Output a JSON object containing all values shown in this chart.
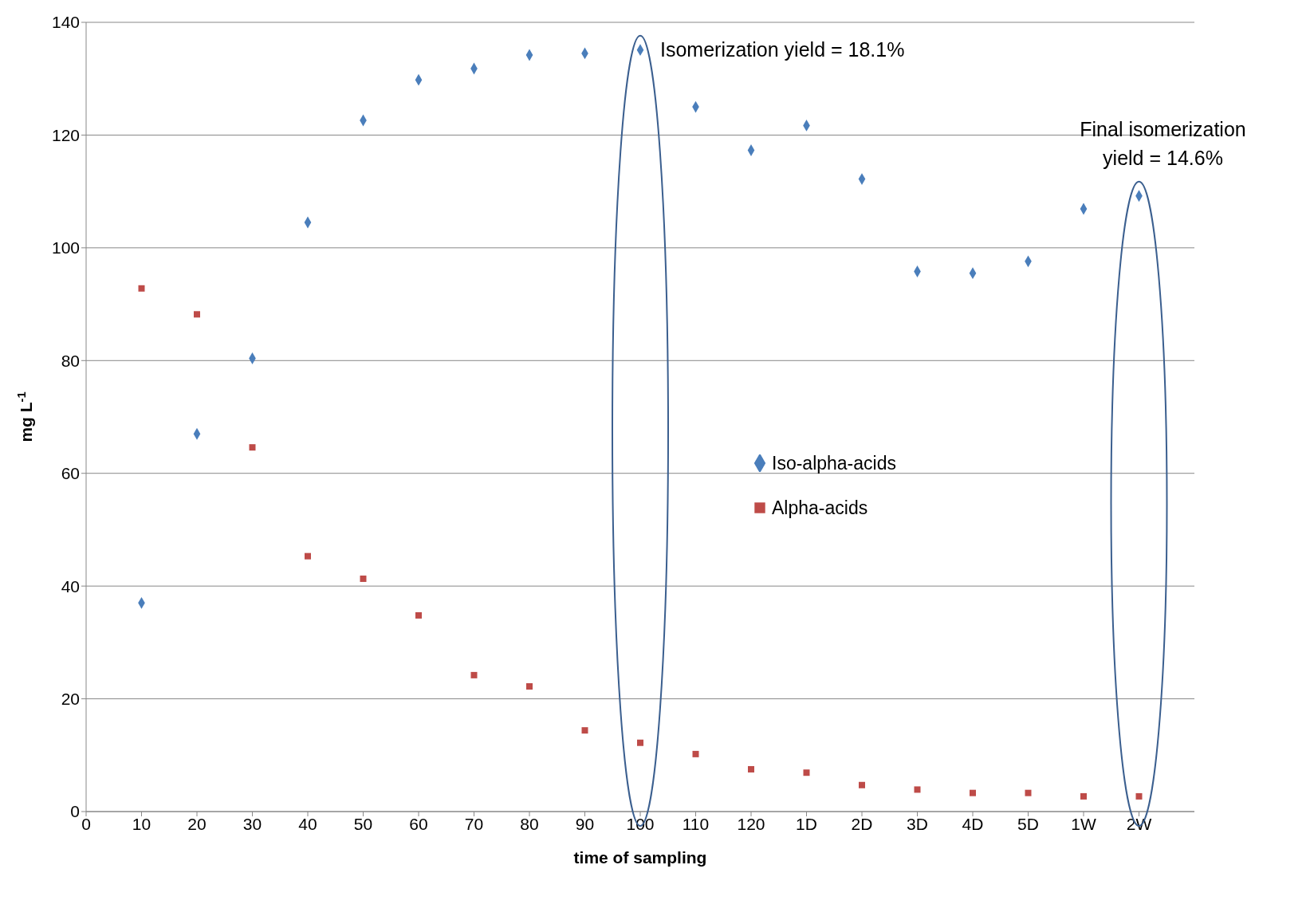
{
  "chart_data": {
    "type": "scatter",
    "xlabel": "time of sampling",
    "ylabel": "mg L$^{-1}$",
    "categories": [
      "0",
      "10",
      "20",
      "30",
      "40",
      "50",
      "60",
      "70",
      "80",
      "90",
      "100",
      "110",
      "120",
      "1D",
      "2D",
      "3D",
      "4D",
      "5D",
      "1W",
      "2W"
    ],
    "series": [
      {
        "name": "Iso-alpha-acids",
        "color": "#4a7ebb",
        "marker": "diamond",
        "values": [
          null,
          37.0,
          67.0,
          80.4,
          104.5,
          122.6,
          129.8,
          131.8,
          134.2,
          134.5,
          135.1,
          125.0,
          117.3,
          121.7,
          112.2,
          95.8,
          95.5,
          97.6,
          106.9,
          109.2
        ]
      },
      {
        "name": "Alpha-acids",
        "color": "#be4b48",
        "marker": "square",
        "values": [
          null,
          92.8,
          88.2,
          64.6,
          45.3,
          41.3,
          34.8,
          24.2,
          22.2,
          14.4,
          12.2,
          10.2,
          7.5,
          6.9,
          4.7,
          3.9,
          3.3,
          3.3,
          2.7,
          2.7
        ]
      }
    ],
    "ylim": [
      0,
      140
    ],
    "yticks": [
      0,
      20,
      40,
      60,
      80,
      100,
      120,
      140
    ],
    "grid": "y",
    "legend": "right",
    "annotations": [
      {
        "text": "Isomerization yield = 18.1%",
        "x": "100",
        "y": 135.1
      },
      {
        "text": "Final isomerization yield = 14.6%",
        "x": "2W",
        "y": 109.2
      }
    ]
  }
}
